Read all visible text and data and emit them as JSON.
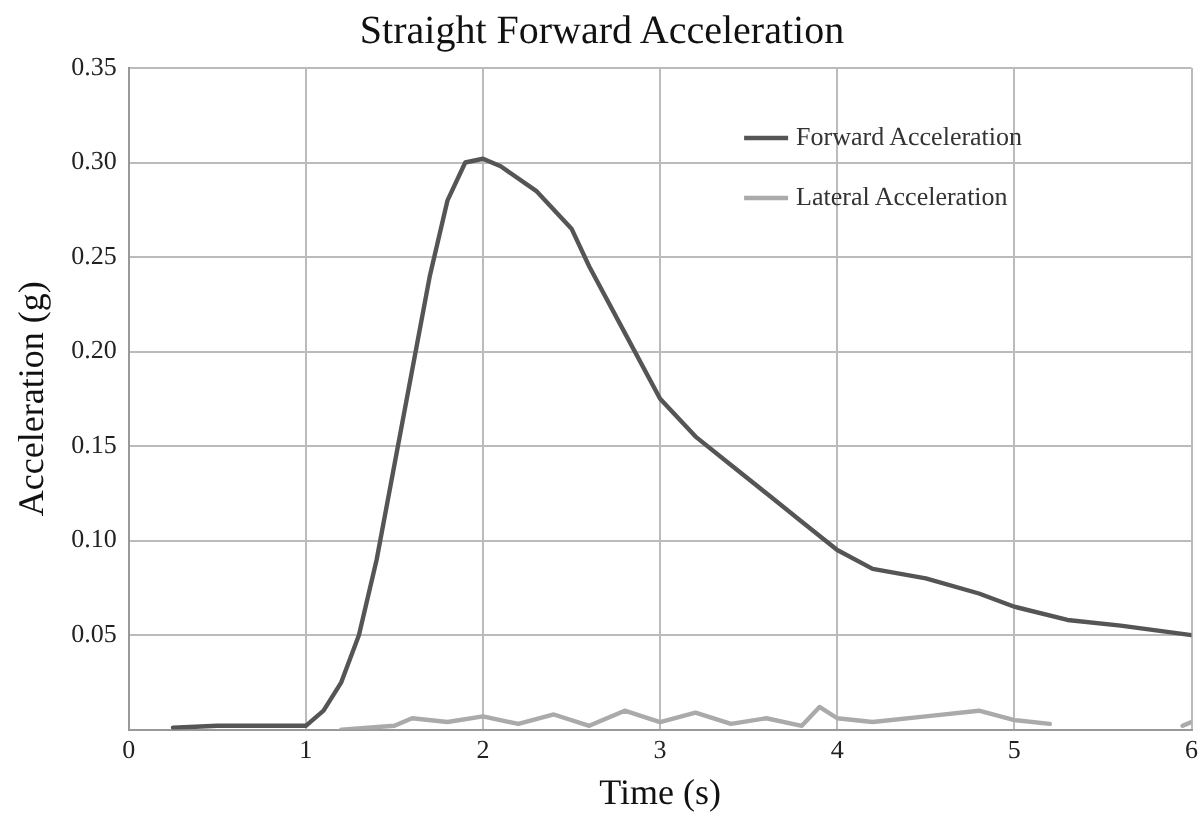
{
  "chart_data": {
    "type": "line",
    "title": "Straight Forward Acceleration",
    "xlabel": "Time (s)",
    "ylabel": "Acceleration (g)",
    "xlim": [
      0,
      6
    ],
    "xticks": [
      0,
      1,
      2,
      3,
      4,
      5,
      6
    ],
    "ylim": [
      0,
      0.35
    ],
    "yticks": [
      {
        "value": 0,
        "label": null
      },
      {
        "value": 0.05,
        "label": "0.05"
      },
      {
        "value": 0.1,
        "label": "0.10"
      },
      {
        "value": 0.15,
        "label": "0.15"
      },
      {
        "value": 0.2,
        "label": "0.20"
      },
      {
        "value": 0.25,
        "label": "0.25"
      },
      {
        "value": 0.3,
        "label": "0.30"
      },
      {
        "value": 0.35,
        "label": "0.35"
      }
    ],
    "grid": true,
    "legend": "top right",
    "marker": "none",
    "line_style": "solid",
    "series": [
      {
        "name": "Forward Acceleration",
        "color": "#555555",
        "x": [
          0.25,
          0.5,
          0.8,
          1.0,
          1.1,
          1.2,
          1.3,
          1.4,
          1.5,
          1.6,
          1.7,
          1.8,
          1.9,
          2.0,
          2.1,
          2.3,
          2.5,
          2.6,
          2.8,
          3.0,
          3.2,
          3.4,
          3.6,
          3.8,
          4.0,
          4.2,
          4.5,
          4.8,
          5.0,
          5.3,
          5.6,
          6.0
        ],
        "values": [
          0.001,
          0.002,
          0.002,
          0.002,
          0.01,
          0.025,
          0.05,
          0.09,
          0.14,
          0.19,
          0.24,
          0.28,
          0.3,
          0.302,
          0.298,
          0.285,
          0.265,
          0.245,
          0.21,
          0.175,
          0.155,
          0.14,
          0.125,
          0.11,
          0.095,
          0.085,
          0.08,
          0.072,
          0.065,
          0.058,
          0.055,
          0.05
        ]
      },
      {
        "name": "Lateral Acceleration",
        "color": "#aaaaaa",
        "x": [
          1.2,
          1.5,
          1.6,
          1.8,
          2.0,
          2.2,
          2.4,
          2.6,
          2.8,
          3.0,
          3.2,
          3.4,
          3.6,
          3.8,
          3.9,
          4.0,
          4.2,
          4.5,
          4.8,
          5.0,
          5.2,
          5.5,
          5.95,
          6.0
        ],
        "values": [
          0,
          0.002,
          0.006,
          0.004,
          0.007,
          0.003,
          0.008,
          0.002,
          0.01,
          0.004,
          0.009,
          0.003,
          0.006,
          0.002,
          0.012,
          0.006,
          0.004,
          0.007,
          0.01,
          0.005,
          0.003,
          null,
          0.002,
          0.004
        ]
      }
    ]
  }
}
